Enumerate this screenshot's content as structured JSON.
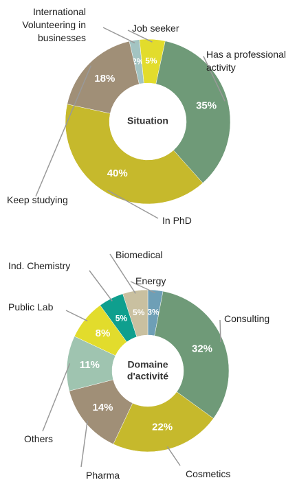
{
  "chart_data": [
    {
      "type": "donut",
      "title": "Situation",
      "categories": [
        "International Volunteering in businesses",
        "Job seeker",
        "Has a professional activity",
        "In PhD",
        "Keep studying"
      ],
      "values": [
        2,
        5,
        35,
        40,
        18
      ],
      "value_labels": [
        "2%",
        "5%",
        "35%",
        "40%",
        "18%"
      ],
      "colors": [
        "#a3c4c2",
        "#e2dc2c",
        "#6f9a78",
        "#c6b92c",
        "#a08f77"
      ]
    },
    {
      "type": "donut",
      "title": "Domaine d'activité",
      "categories": [
        "Energy",
        "Consulting",
        "Cosmetics",
        "Pharma",
        "Others",
        "Public Lab",
        "Ind. Chemistry",
        "Biomedical"
      ],
      "values": [
        3,
        32,
        22,
        14,
        11,
        8,
        5,
        5
      ],
      "value_labels": [
        "3%",
        "32%",
        "22%",
        "14%",
        "11%",
        "8%",
        "5%",
        "5%"
      ],
      "colors": [
        "#6e9fb6",
        "#6f9a78",
        "#c6b92c",
        "#a08f77",
        "#9fc4b0",
        "#e2dc2c",
        "#0f9f8e",
        "#c9c0a0"
      ]
    }
  ]
}
